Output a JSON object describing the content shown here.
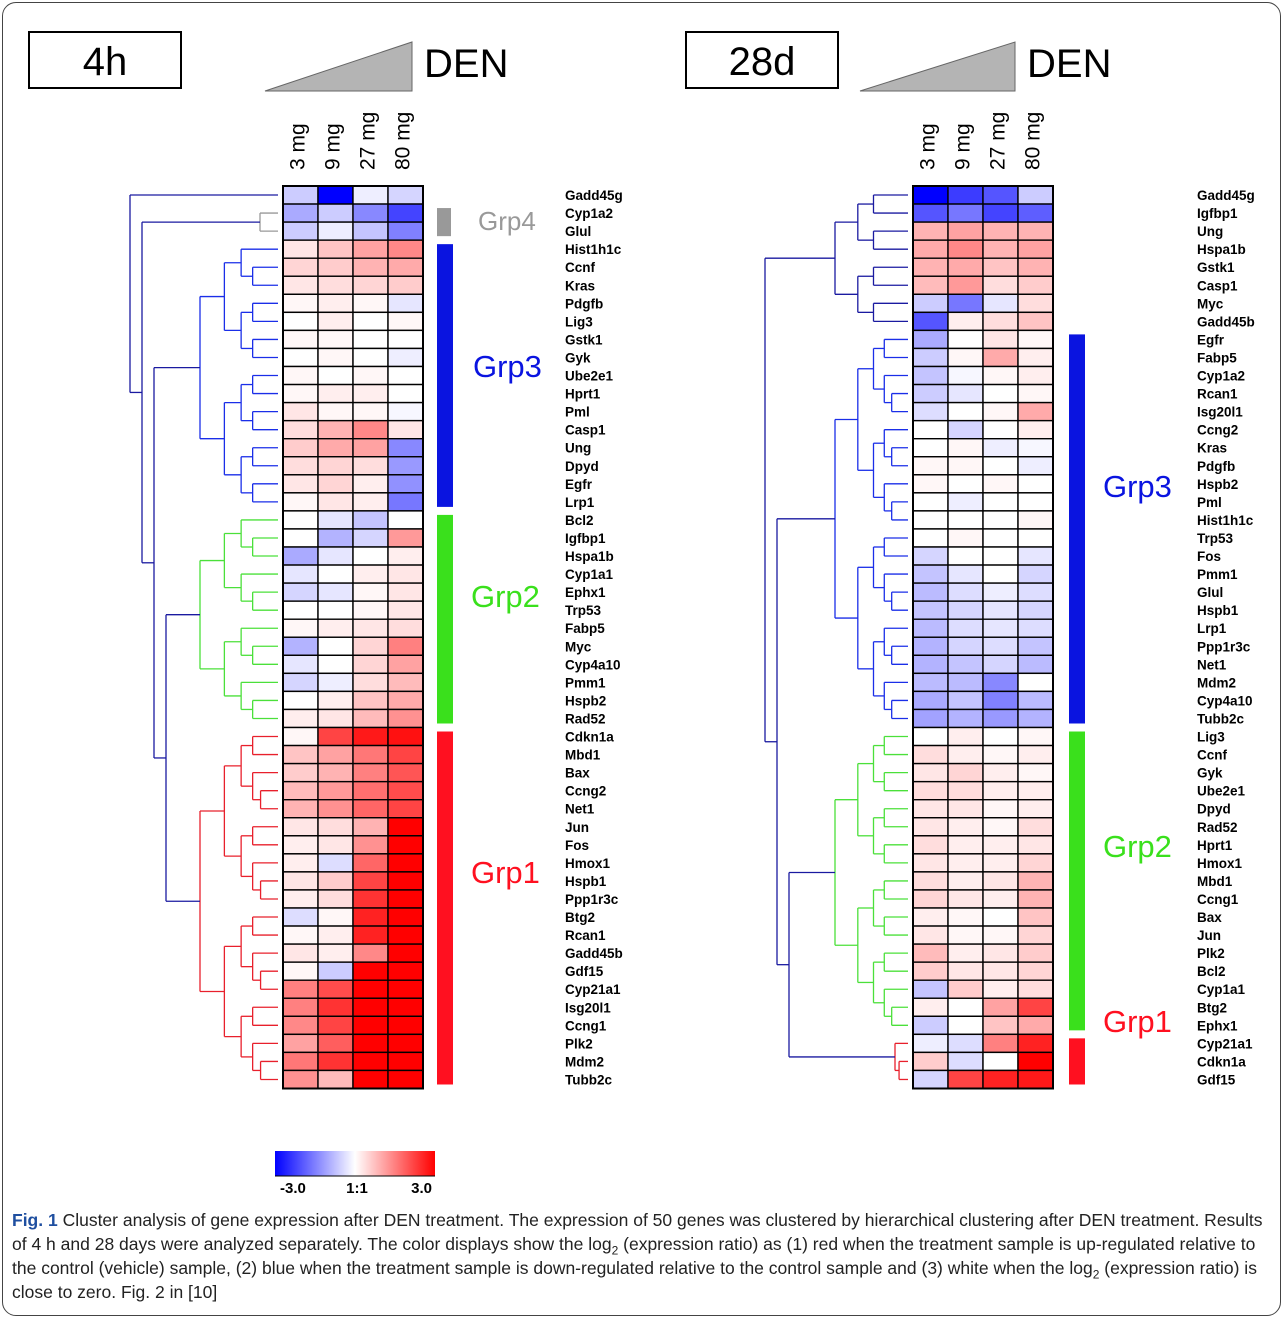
{
  "chart_data": [
    {
      "type": "heatmap",
      "panel_label": "4h",
      "treatment_label": "DEN",
      "columns": [
        "3 mg",
        "9 mg",
        "27 mg",
        "80 mg"
      ],
      "value_range": [
        -3.0,
        3.0
      ],
      "rows": [
        {
          "gene": "Gadd45g",
          "values": [
            -0.6,
            -3.0,
            -0.2,
            -0.5
          ]
        },
        {
          "gene": "Cyp1a2",
          "values": [
            -1.0,
            -0.6,
            -1.4,
            -2.2
          ]
        },
        {
          "gene": "Glul",
          "values": [
            -0.6,
            -0.2,
            -0.7,
            -1.5
          ]
        },
        {
          "gene": "Hist1h1c",
          "values": [
            0.3,
            0.7,
            1.1,
            1.4
          ]
        },
        {
          "gene": "Ccnf",
          "values": [
            0.5,
            0.6,
            0.9,
            1.0
          ]
        },
        {
          "gene": "Kras",
          "values": [
            0.3,
            0.4,
            0.5,
            0.6
          ]
        },
        {
          "gene": "Pdgfb",
          "values": [
            0.1,
            0.2,
            0.1,
            -0.3
          ]
        },
        {
          "gene": "Lig3",
          "values": [
            0.0,
            0.2,
            0.0,
            0.1
          ]
        },
        {
          "gene": "Gstk1",
          "values": [
            0.1,
            0.1,
            0.0,
            0.0
          ]
        },
        {
          "gene": "Gyk",
          "values": [
            0.0,
            0.1,
            0.0,
            -0.2
          ]
        },
        {
          "gene": "Ube2e1",
          "values": [
            0.1,
            0.0,
            0.1,
            0.0
          ]
        },
        {
          "gene": "Hprt1",
          "values": [
            0.1,
            0.2,
            0.2,
            0.0
          ]
        },
        {
          "gene": "Pml",
          "values": [
            0.3,
            0.1,
            0.1,
            -0.1
          ]
        },
        {
          "gene": "Casp1",
          "values": [
            0.4,
            0.9,
            1.4,
            0.3
          ]
        },
        {
          "gene": "Ung",
          "values": [
            0.6,
            1.0,
            1.1,
            -1.4
          ]
        },
        {
          "gene": "Dpyd",
          "values": [
            0.4,
            0.5,
            0.4,
            -1.2
          ]
        },
        {
          "gene": "Egfr",
          "values": [
            0.3,
            0.5,
            0.2,
            -1.3
          ]
        },
        {
          "gene": "Lrp1",
          "values": [
            0.1,
            0.3,
            0.2,
            -1.6
          ]
        },
        {
          "gene": "Bcl2",
          "values": [
            0.0,
            -0.3,
            -0.7,
            0.0
          ]
        },
        {
          "gene": "Igfbp1",
          "values": [
            0.0,
            -0.9,
            -0.5,
            1.2
          ]
        },
        {
          "gene": "Hspa1b",
          "values": [
            -1.0,
            -0.3,
            0.0,
            0.2
          ]
        },
        {
          "gene": "Cyp1a1",
          "values": [
            -0.3,
            0.0,
            0.2,
            0.3
          ]
        },
        {
          "gene": "Ephx1",
          "values": [
            -0.5,
            -0.3,
            0.1,
            0.3
          ]
        },
        {
          "gene": "Trp53",
          "values": [
            0.0,
            0.0,
            0.1,
            0.3
          ]
        },
        {
          "gene": "Fabp5",
          "values": [
            0.1,
            0.2,
            0.3,
            0.4
          ]
        },
        {
          "gene": "Myc",
          "values": [
            -0.9,
            0.0,
            0.5,
            1.5
          ]
        },
        {
          "gene": "Cyp4a10",
          "values": [
            -0.3,
            0.0,
            0.5,
            1.1
          ]
        },
        {
          "gene": "Pmm1",
          "values": [
            -0.5,
            -0.2,
            0.4,
            0.8
          ]
        },
        {
          "gene": "Hspb2",
          "values": [
            0.0,
            0.2,
            0.7,
            1.0
          ]
        },
        {
          "gene": "Rad52",
          "values": [
            0.2,
            0.3,
            0.8,
            1.3
          ]
        },
        {
          "gene": "Cdkn1a",
          "values": [
            0.1,
            2.2,
            2.7,
            2.8
          ]
        },
        {
          "gene": "Mbd1",
          "values": [
            0.7,
            1.1,
            1.6,
            2.2
          ]
        },
        {
          "gene": "Bax",
          "values": [
            0.6,
            0.9,
            1.5,
            2.0
          ]
        },
        {
          "gene": "Ccng2",
          "values": [
            0.8,
            1.2,
            1.7,
            2.1
          ]
        },
        {
          "gene": "Net1",
          "values": [
            0.9,
            1.3,
            1.8,
            2.2
          ]
        },
        {
          "gene": "Jun",
          "values": [
            0.3,
            0.4,
            0.9,
            3.0
          ]
        },
        {
          "gene": "Fos",
          "values": [
            0.2,
            0.3,
            1.3,
            3.0
          ]
        },
        {
          "gene": "Hmox1",
          "values": [
            0.2,
            -0.4,
            1.8,
            3.0
          ]
        },
        {
          "gene": "Hspb1",
          "values": [
            0.3,
            0.6,
            2.2,
            3.0
          ]
        },
        {
          "gene": "Ppp1r3c",
          "values": [
            0.2,
            0.4,
            2.4,
            3.0
          ]
        },
        {
          "gene": "Btg2",
          "values": [
            -0.4,
            0.1,
            2.6,
            3.0
          ]
        },
        {
          "gene": "Rcan1",
          "values": [
            0.1,
            0.2,
            2.6,
            3.0
          ]
        },
        {
          "gene": "Gadd45b",
          "values": [
            0.3,
            0.2,
            1.4,
            3.0
          ]
        },
        {
          "gene": "Gdf15",
          "values": [
            0.1,
            -0.6,
            3.0,
            3.0
          ]
        },
        {
          "gene": "Cyp21a1",
          "values": [
            1.5,
            2.1,
            3.0,
            3.0
          ]
        },
        {
          "gene": "Isg20l1",
          "values": [
            1.5,
            2.4,
            3.0,
            3.0
          ]
        },
        {
          "gene": "Ccng1",
          "values": [
            1.4,
            2.2,
            3.0,
            3.0
          ]
        },
        {
          "gene": "Plk2",
          "values": [
            1.1,
            1.9,
            3.0,
            3.0
          ]
        },
        {
          "gene": "Mdm2",
          "values": [
            1.6,
            2.4,
            3.0,
            3.0
          ]
        },
        {
          "gene": "Tubb2c",
          "values": [
            1.3,
            0.8,
            3.0,
            3.0
          ]
        }
      ],
      "groups": [
        {
          "name": "Grp4",
          "color": "#999999",
          "first_row": 1,
          "last_row": 2
        },
        {
          "name": "Grp3",
          "color": "#0a14e0",
          "first_row": 3,
          "last_row": 17
        },
        {
          "name": "Grp2",
          "color": "#3ae01c",
          "first_row": 18,
          "last_row": 29
        },
        {
          "name": "Grp1",
          "color": "#ff1020",
          "first_row": 30,
          "last_row": 49
        }
      ],
      "dendrogram_colors": {
        "top": "#1a1aa0",
        "Grp3": "#1a2ee8",
        "Grp2": "#4be03a",
        "Grp1": "#e8202c"
      }
    },
    {
      "type": "heatmap",
      "panel_label": "28d",
      "treatment_label": "DEN",
      "columns": [
        "3 mg",
        "9 mg",
        "27 mg",
        "80 mg"
      ],
      "value_range": [
        -3.0,
        3.0
      ],
      "rows": [
        {
          "gene": "Gadd45g",
          "values": [
            -3.0,
            -2.3,
            -2.0,
            -0.6
          ]
        },
        {
          "gene": "Igfbp1",
          "values": [
            -2.0,
            -1.6,
            -2.2,
            -1.9
          ]
        },
        {
          "gene": "Ung",
          "values": [
            0.9,
            1.1,
            0.9,
            0.9
          ]
        },
        {
          "gene": "Hspa1b",
          "values": [
            1.0,
            1.4,
            0.9,
            1.1
          ]
        },
        {
          "gene": "Gstk1",
          "values": [
            0.9,
            1.0,
            0.7,
            0.9
          ]
        },
        {
          "gene": "Casp1",
          "values": [
            0.8,
            1.2,
            0.4,
            0.6
          ]
        },
        {
          "gene": "Myc",
          "values": [
            -0.6,
            -1.6,
            -0.3,
            0.4
          ]
        },
        {
          "gene": "Gadd45b",
          "values": [
            -2.0,
            0.2,
            0.4,
            0.7
          ]
        },
        {
          "gene": "Egfr",
          "values": [
            -1.0,
            0.0,
            0.3,
            0.1
          ]
        },
        {
          "gene": "Fabp5",
          "values": [
            -0.6,
            0.1,
            1.0,
            0.2
          ]
        },
        {
          "gene": "Cyp1a2",
          "values": [
            -0.7,
            -0.1,
            0.1,
            0.2
          ]
        },
        {
          "gene": "Rcan1",
          "values": [
            -0.6,
            -0.3,
            0.0,
            0.1
          ]
        },
        {
          "gene": "Isg20l1",
          "values": [
            -0.4,
            0.0,
            0.1,
            1.0
          ]
        },
        {
          "gene": "Ccng2",
          "values": [
            0.0,
            -0.5,
            0.0,
            0.2
          ]
        },
        {
          "gene": "Kras",
          "values": [
            0.0,
            0.1,
            -0.2,
            -0.1
          ]
        },
        {
          "gene": "Pdgfb",
          "values": [
            0.1,
            0.1,
            0.0,
            -0.2
          ]
        },
        {
          "gene": "Hspb2",
          "values": [
            0.1,
            0.0,
            0.1,
            0.0
          ]
        },
        {
          "gene": "Pml",
          "values": [
            0.0,
            -0.2,
            0.0,
            0.0
          ]
        },
        {
          "gene": "Hist1h1c",
          "values": [
            0.0,
            0.0,
            0.0,
            0.1
          ]
        },
        {
          "gene": "Trp53",
          "values": [
            0.0,
            0.1,
            0.0,
            0.0
          ]
        },
        {
          "gene": "Fos",
          "values": [
            -0.5,
            0.0,
            0.0,
            -0.3
          ]
        },
        {
          "gene": "Pmm1",
          "values": [
            -0.7,
            -0.3,
            0.0,
            -0.5
          ]
        },
        {
          "gene": "Glul",
          "values": [
            -0.8,
            -0.4,
            -0.2,
            -0.4
          ]
        },
        {
          "gene": "Hspb1",
          "values": [
            -0.7,
            -0.5,
            -0.3,
            -0.5
          ]
        },
        {
          "gene": "Lrp1",
          "values": [
            -0.8,
            -0.4,
            -0.3,
            -0.4
          ]
        },
        {
          "gene": "Ppp1r3c",
          "values": [
            -0.9,
            -0.5,
            -0.4,
            -0.7
          ]
        },
        {
          "gene": "Net1",
          "values": [
            -0.9,
            -0.7,
            -0.5,
            -0.8
          ]
        },
        {
          "gene": "Mdm2",
          "values": [
            -0.8,
            -0.8,
            -1.4,
            0.0
          ]
        },
        {
          "gene": "Cyp4a10",
          "values": [
            -1.0,
            -0.7,
            -1.5,
            -0.8
          ]
        },
        {
          "gene": "Tubb2c",
          "values": [
            -1.1,
            -0.9,
            -1.2,
            -0.9
          ]
        },
        {
          "gene": "Lig3",
          "values": [
            0.0,
            0.2,
            0.0,
            0.1
          ]
        },
        {
          "gene": "Ccnf",
          "values": [
            0.4,
            0.2,
            0.1,
            0.2
          ]
        },
        {
          "gene": "Gyk",
          "values": [
            0.3,
            0.5,
            0.2,
            0.1
          ]
        },
        {
          "gene": "Ube2e1",
          "values": [
            0.4,
            0.4,
            0.2,
            0.2
          ]
        },
        {
          "gene": "Dpyd",
          "values": [
            0.3,
            0.3,
            0.1,
            0.2
          ]
        },
        {
          "gene": "Rad52",
          "values": [
            0.3,
            0.2,
            0.1,
            0.4
          ]
        },
        {
          "gene": "Hprt1",
          "values": [
            0.4,
            0.2,
            0.2,
            0.3
          ]
        },
        {
          "gene": "Hmox1",
          "values": [
            0.3,
            0.2,
            0.2,
            0.5
          ]
        },
        {
          "gene": "Mbd1",
          "values": [
            0.4,
            0.2,
            0.3,
            0.9
          ]
        },
        {
          "gene": "Ccng1",
          "values": [
            0.5,
            0.3,
            0.2,
            0.9
          ]
        },
        {
          "gene": "Bax",
          "values": [
            0.2,
            0.1,
            0.0,
            0.7
          ]
        },
        {
          "gene": "Jun",
          "values": [
            0.3,
            0.1,
            0.1,
            0.5
          ]
        },
        {
          "gene": "Plk2",
          "values": [
            0.8,
            0.2,
            0.3,
            0.6
          ]
        },
        {
          "gene": "Bcl2",
          "values": [
            0.6,
            0.3,
            0.3,
            0.5
          ]
        },
        {
          "gene": "Cyp1a1",
          "values": [
            -0.7,
            0.6,
            0.2,
            0.4
          ]
        },
        {
          "gene": "Btg2",
          "values": [
            0.2,
            0.0,
            1.1,
            2.2
          ]
        },
        {
          "gene": "Ephx1",
          "values": [
            -0.6,
            0.0,
            0.7,
            1.0
          ]
        },
        {
          "gene": "Cyp21a1",
          "values": [
            -0.2,
            -0.4,
            1.5,
            2.6
          ]
        },
        {
          "gene": "Cdkn1a",
          "values": [
            0.6,
            -0.4,
            0.0,
            3.0
          ]
        },
        {
          "gene": "Gdf15",
          "values": [
            -0.5,
            2.2,
            2.6,
            2.7
          ]
        }
      ],
      "groups": [
        {
          "name": "Grp3",
          "color": "#0a14e0",
          "first_row": 8,
          "last_row": 29
        },
        {
          "name": "Grp2",
          "color": "#3ae01c",
          "first_row": 30,
          "last_row": 46
        },
        {
          "name": "Grp1",
          "color": "#ff1020",
          "first_row": 47,
          "last_row": 49
        }
      ],
      "dendrogram_colors": {
        "top": "#1a1aa0",
        "Grp3": "#1a2ee8",
        "Grp2": "#4be03a",
        "Grp1": "#e8202c"
      }
    }
  ],
  "legend": {
    "labels": {
      "min": "-3.0",
      "mid": "1:1",
      "max": "3.0"
    },
    "colors": {
      "min": "#0000ff",
      "mid": "#ffffff",
      "max": "#ff0000"
    }
  },
  "caption": {
    "label": "Fig. 1",
    "text_before_sub": " Cluster analysis of gene expression after DEN treatment. The expression of 50 genes was clustered by hierarchical clustering after DEN treatment. Results of 4 h and 28 days were analyzed separately. The color displays show the log",
    "text_mid": " (expression ratio) as (1) red when the treatment sample is up-regulated relative to the control (vehicle) sample, (2) blue when the treatment sample is down-regulated relative to the control sample and (3) white when the log",
    "text_after_sub": " (expression ratio) is close to zero. Fig. 2 in [10]",
    "subscript": "2"
  }
}
